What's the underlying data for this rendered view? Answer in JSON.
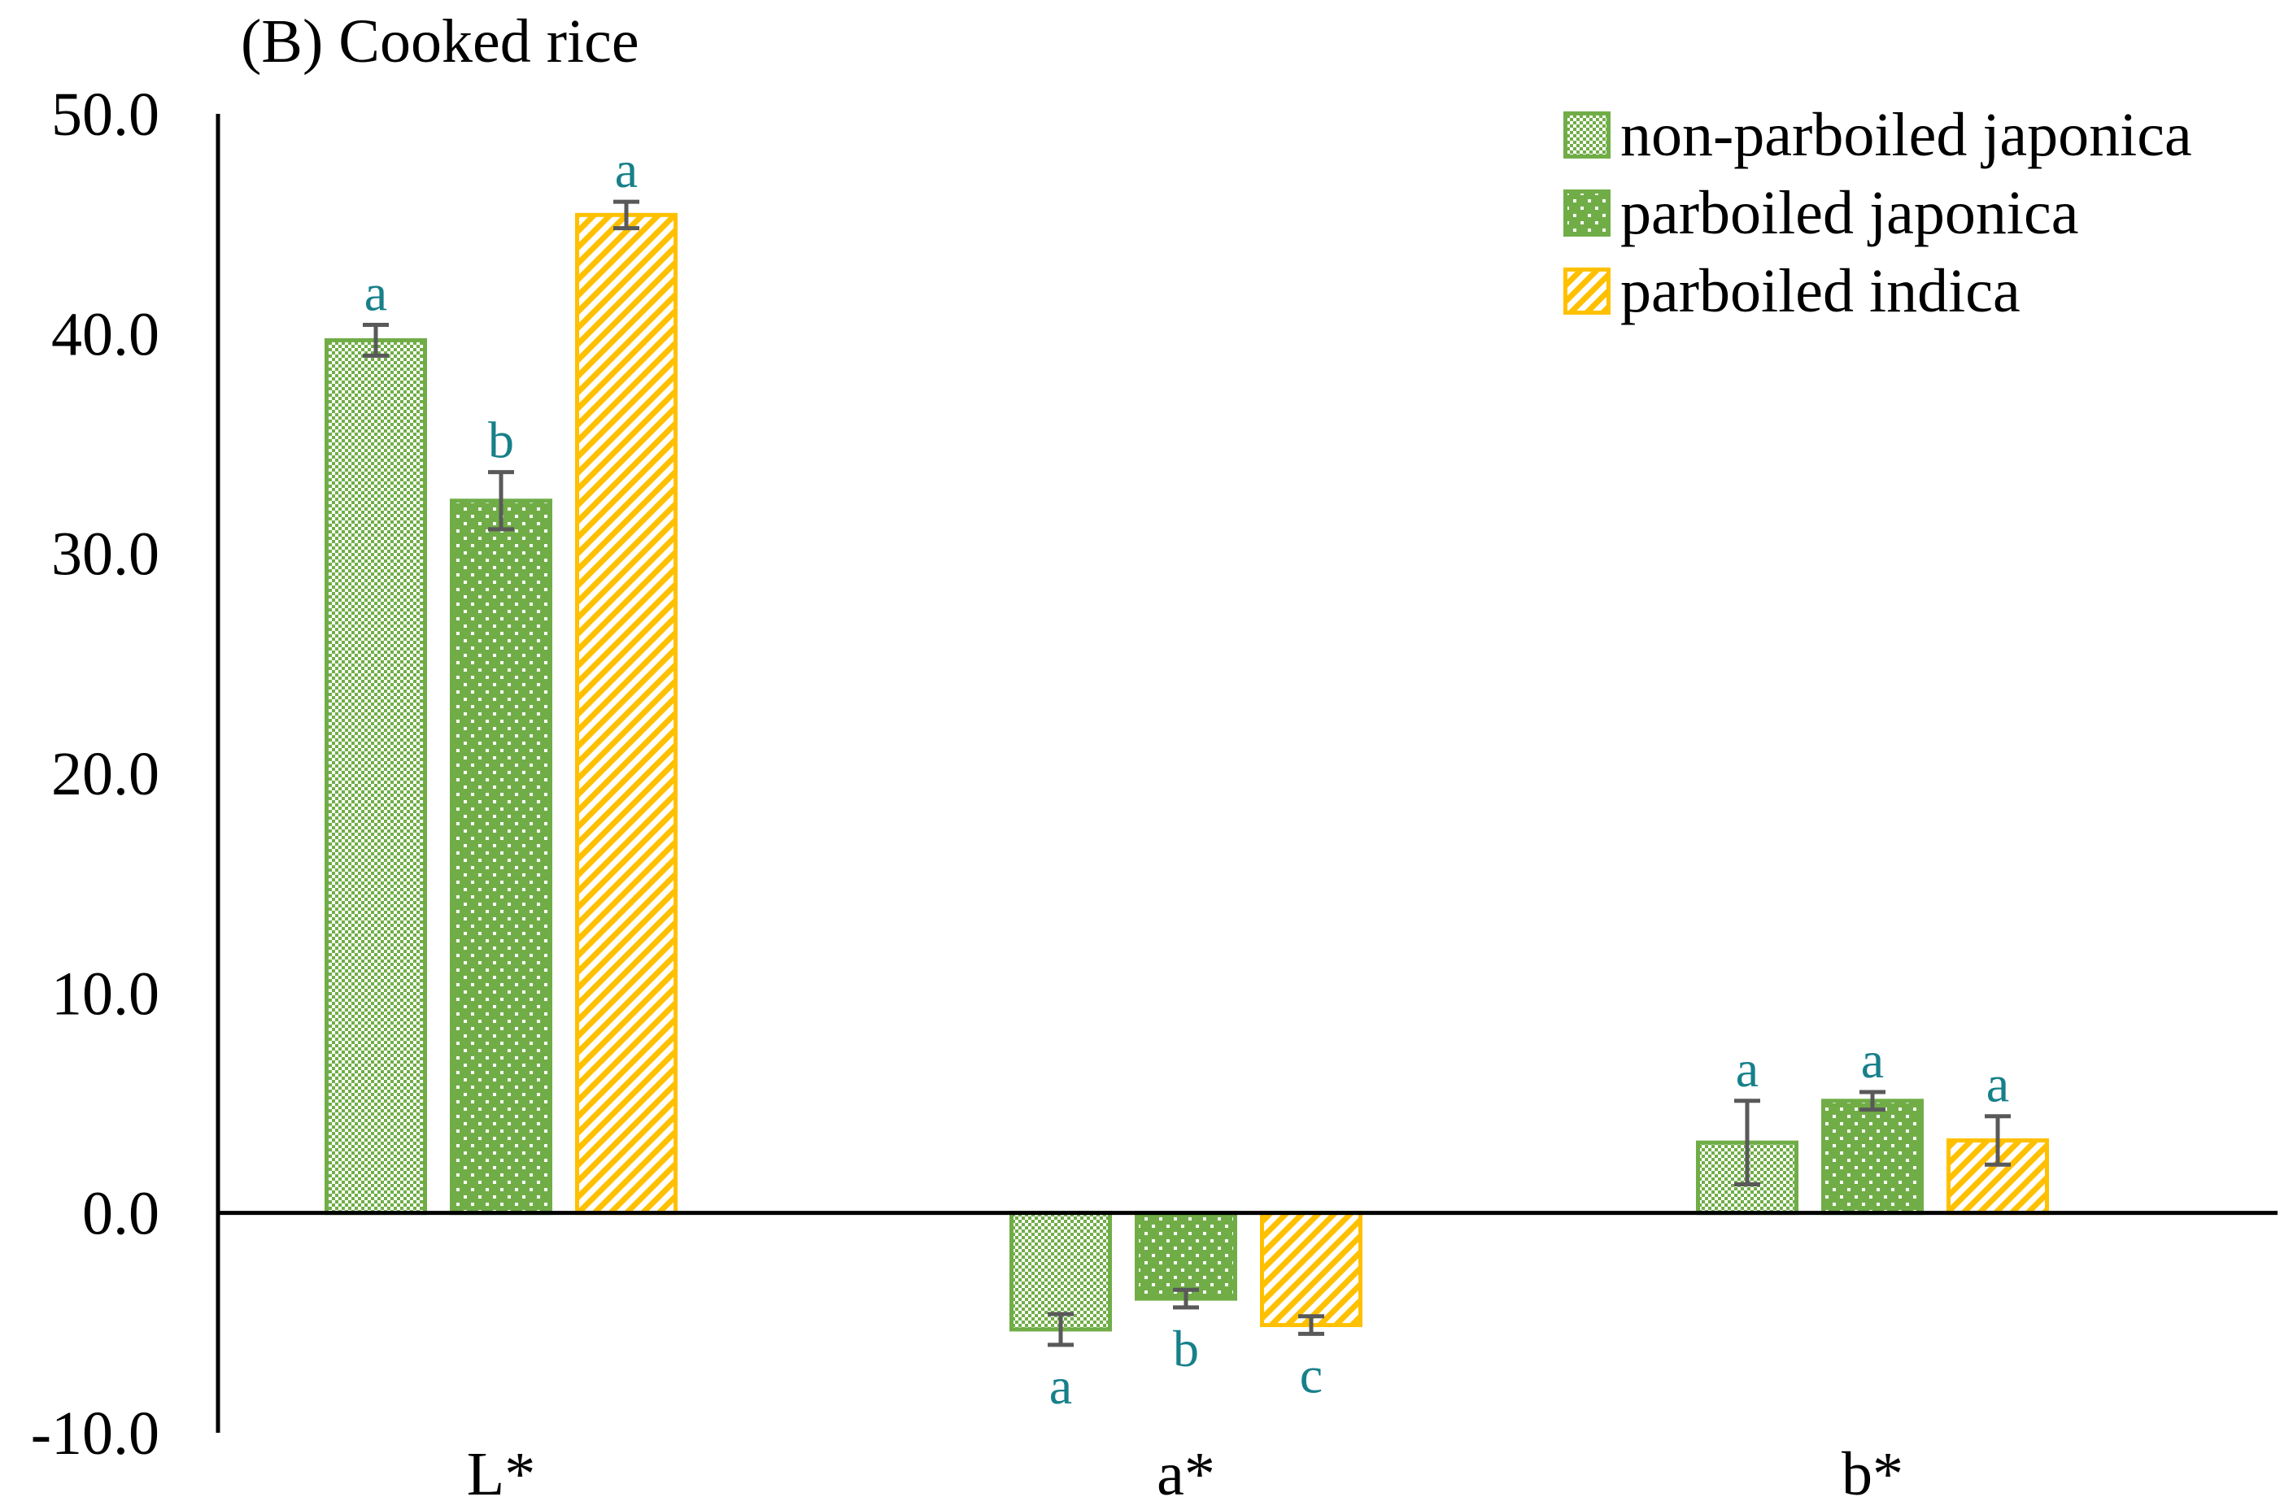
{
  "chart_data": {
    "type": "bar",
    "title": "(B) Cooked rice",
    "categories": [
      "L*",
      "a*",
      "b*"
    ],
    "ylim": [
      -10.0,
      50.0
    ],
    "yticks": [
      "50.0",
      "40.0",
      "30.0",
      "20.0",
      "10.0",
      "0.0",
      "-10.0"
    ],
    "xlabel": "",
    "ylabel": "",
    "legend_position": "top-right",
    "series": [
      {
        "name": "non-parboiled japonica",
        "color": "#70AD47",
        "pattern": "checker",
        "values": [
          39.7,
          -5.3,
          3.2
        ],
        "errors": [
          0.7,
          0.7,
          1.9
        ],
        "letters": [
          "a",
          "a",
          "a"
        ]
      },
      {
        "name": "parboiled japonica",
        "color": "#70AD47",
        "pattern": "dots",
        "values": [
          32.4,
          -3.9,
          5.1
        ],
        "errors": [
          1.3,
          0.4,
          0.4
        ],
        "letters": [
          "b",
          "b",
          "a"
        ]
      },
      {
        "name": "parboiled indica",
        "color": "#FFC000",
        "pattern": "diagonal",
        "values": [
          45.4,
          -5.1,
          3.3
        ],
        "errors": [
          0.6,
          0.4,
          1.1
        ],
        "letters": [
          "a",
          "c",
          "a"
        ]
      }
    ]
  }
}
